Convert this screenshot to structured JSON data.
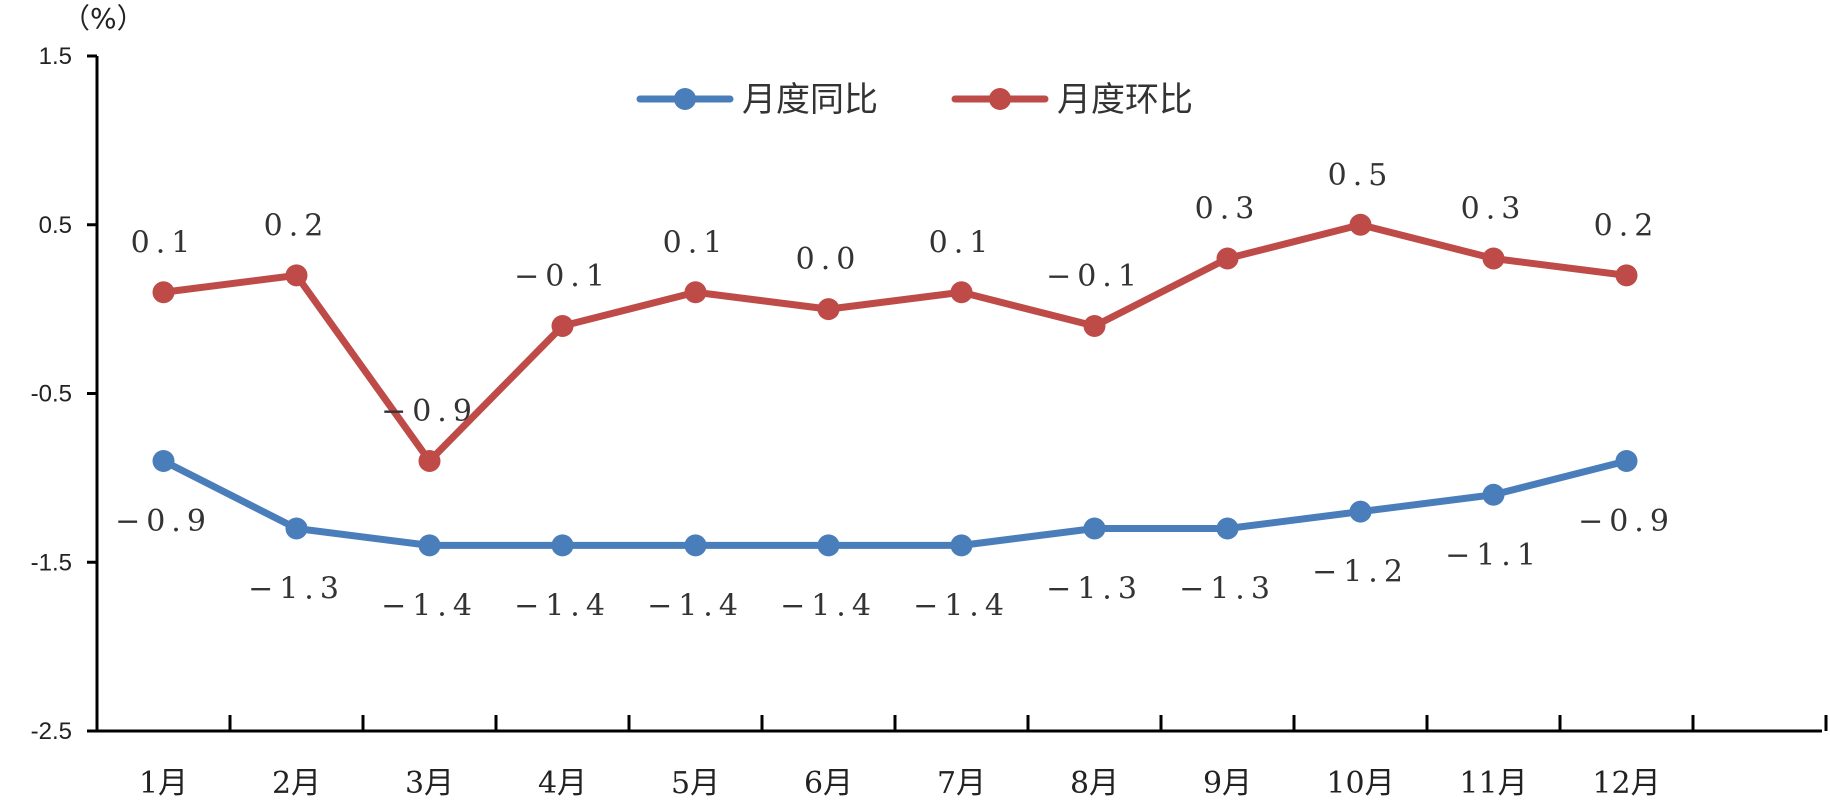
{
  "chart_data": {
    "type": "line",
    "y_unit": "（%）",
    "categories": [
      "1月",
      "2月",
      "3月",
      "4月",
      "5月",
      "6月",
      "7月",
      "8月",
      "9月",
      "10月",
      "11月",
      "12月"
    ],
    "ylim": [
      -2.5,
      1.5
    ],
    "yticks": [
      "1.5",
      "0.5",
      "-0.5",
      "-1.5",
      "-2.5"
    ],
    "ytick_values": [
      1.5,
      0.5,
      -0.5,
      -1.5,
      -2.5
    ],
    "legend_position": "top-center",
    "grid": false,
    "series": [
      {
        "name": "月度同比",
        "color": "#4a7ebb",
        "values": [
          -0.9,
          -1.3,
          -1.4,
          -1.4,
          -1.4,
          -1.4,
          -1.4,
          -1.3,
          -1.3,
          -1.2,
          -1.1,
          -0.9
        ],
        "labels": [
          "−0.9",
          "−1.3",
          "−1.4",
          "−1.4",
          "−1.4",
          "−1.4",
          "−1.4",
          "−1.3",
          "−1.3",
          "−1.2",
          "−1.1",
          "−0.9"
        ]
      },
      {
        "name": "月度环比",
        "color": "#be4b48",
        "values": [
          0.1,
          0.2,
          -0.9,
          -0.1,
          0.1,
          0.0,
          0.1,
          -0.1,
          0.3,
          0.5,
          0.3,
          0.2
        ],
        "labels": [
          "0.1",
          "0.2",
          "−0.9",
          "−0.1",
          "0.1",
          "0.0",
          "0.1",
          "−0.1",
          "0.3",
          "0.5",
          "0.3",
          "0.2"
        ]
      }
    ]
  }
}
